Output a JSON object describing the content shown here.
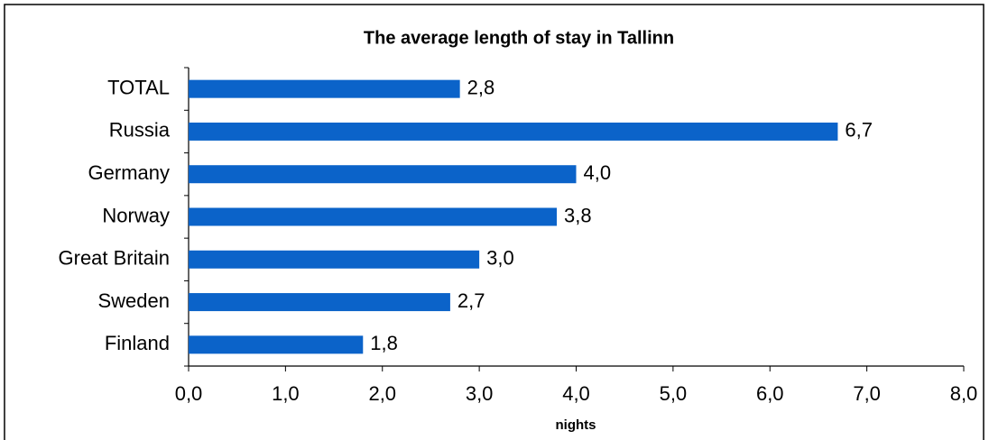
{
  "chart_data": {
    "type": "hbar",
    "title": "The average length of stay in Tallinn",
    "x_label": "nights",
    "categories": [
      "TOTAL",
      "Russia",
      "Germany",
      "Norway",
      "Great Britain",
      "Sweden",
      "Finland"
    ],
    "values": [
      2.8,
      6.7,
      4.0,
      3.8,
      3.0,
      2.7,
      1.8
    ],
    "value_labels": [
      "2,8",
      "6,7",
      "4,0",
      "3,8",
      "3,0",
      "2,7",
      "1,8"
    ],
    "color": "#0b63c9",
    "xlim": [
      0,
      8
    ],
    "xticks": [
      {
        "value": 0,
        "label": "0,0"
      },
      {
        "value": 1,
        "label": "1,0"
      },
      {
        "value": 2,
        "label": "2,0"
      },
      {
        "value": 3,
        "label": "3,0"
      },
      {
        "value": 4,
        "label": "4,0"
      },
      {
        "value": 5,
        "label": "5,0"
      },
      {
        "value": 6,
        "label": "6,0"
      },
      {
        "value": 7,
        "label": "7,0"
      },
      {
        "value": 8,
        "label": "8,0"
      }
    ]
  }
}
